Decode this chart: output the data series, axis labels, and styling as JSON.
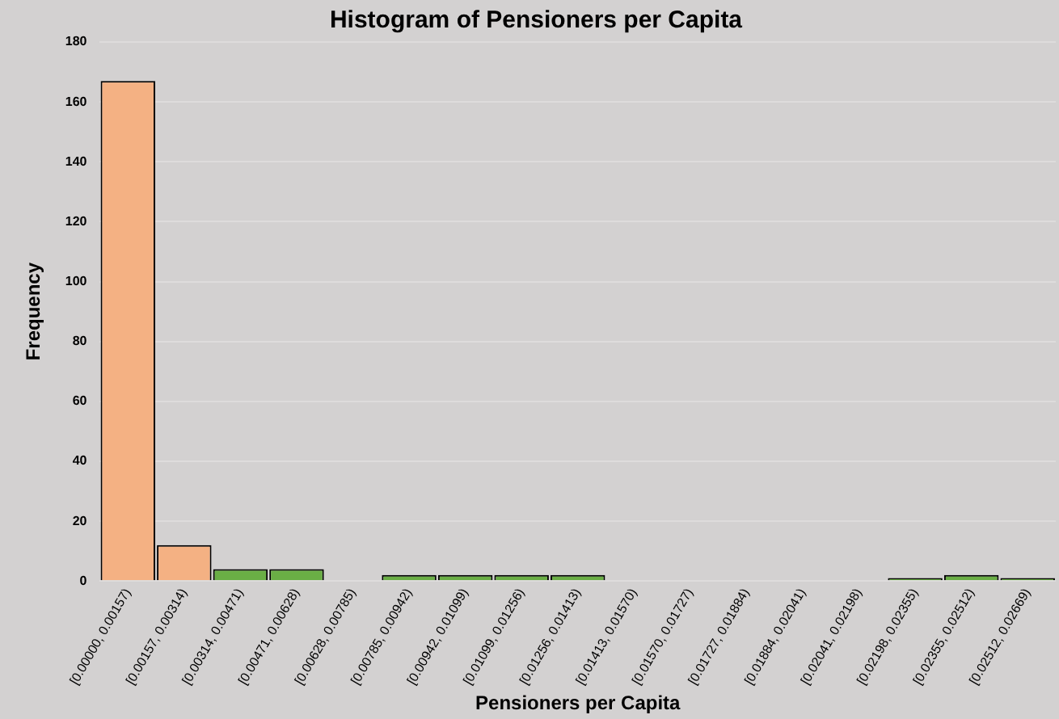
{
  "chart_data": {
    "type": "bar",
    "title": "Histogram of Pensioners per Capita",
    "xlabel": "Pensioners per Capita",
    "ylabel": "Frequency",
    "categories": [
      "[0.00000, 0.00157)",
      "[0.00157, 0.00314)",
      "[0.00314, 0.00471)",
      "[0.00471, 0.00628)",
      "[0.00628, 0.00785)",
      "[0.00785, 0.00942)",
      "[0.00942, 0.01099)",
      "[0.01099, 0.01256)",
      "[0.01256, 0.01413)",
      "[0.01413, 0.01570)",
      "[0.01570, 0.01727)",
      "[0.01727, 0.01884)",
      "[0.01884, 0.02041)",
      "[0.02041, 0.02198)",
      "[0.02198, 0.02355)",
      "[0.02355, 0.02512)",
      "[0.02512, 0.02669)"
    ],
    "values": [
      167,
      12,
      4,
      4,
      0,
      2,
      2,
      2,
      2,
      0,
      0,
      0,
      0,
      0,
      1,
      2,
      1
    ],
    "colors": [
      "#f4b183",
      "#f4b183",
      "#6aae45",
      "#6aae45",
      "#6aae45",
      "#6aae45",
      "#6aae45",
      "#6aae45",
      "#6aae45",
      "#6aae45",
      "#6aae45",
      "#6aae45",
      "#6aae45",
      "#6aae45",
      "#6aae45",
      "#6aae45",
      "#6aae45"
    ],
    "ylim": [
      0,
      180
    ],
    "yticks": [
      0,
      20,
      40,
      60,
      80,
      100,
      120,
      140,
      160,
      180
    ],
    "grid": "y",
    "legend": false
  }
}
